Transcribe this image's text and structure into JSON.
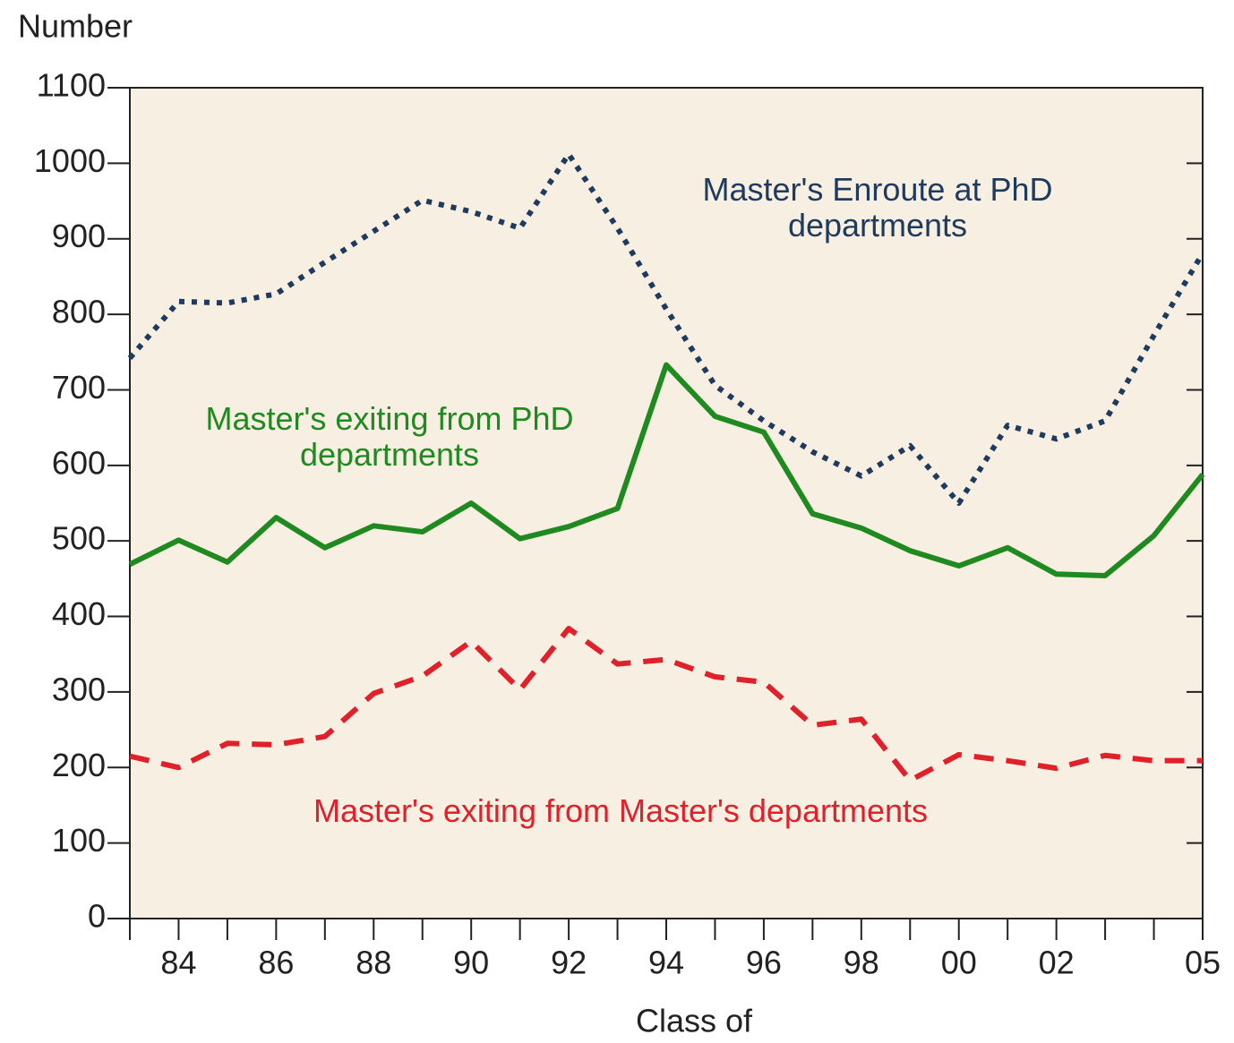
{
  "chart_data": {
    "type": "line",
    "ylabel": "Number",
    "xlabel": "Class of",
    "categories": [
      null,
      "84",
      null,
      "86",
      null,
      "88",
      null,
      "90",
      null,
      "92",
      null,
      "94",
      null,
      "96",
      null,
      "98",
      null,
      "00",
      null,
      "02",
      null,
      null,
      "05"
    ],
    "series": [
      {
        "name": "Master's Enroute at PhD departments",
        "color": "#1f3a5f",
        "style": "dotted",
        "values": [
          742,
          817,
          815,
          827,
          869,
          910,
          951,
          936,
          914,
          1012,
          914,
          807,
          706,
          659,
          618,
          586,
          626,
          550,
          653,
          635,
          659,
          772,
          881
        ]
      },
      {
        "name": "Master's exiting from PhD departments",
        "color": "#1f8a1f",
        "style": "solid",
        "values": [
          469,
          501,
          472,
          531,
          491,
          520,
          512,
          550,
          503,
          519,
          543,
          733,
          665,
          644,
          536,
          517,
          487,
          467,
          491,
          456,
          454,
          507,
          588
        ]
      },
      {
        "name": "Master's exiting from Master's departments",
        "color": "#e0202a",
        "style": "dashed",
        "values": [
          215,
          200,
          232,
          230,
          241,
          298,
          321,
          367,
          303,
          384,
          337,
          343,
          320,
          313,
          256,
          264,
          183,
          217,
          209,
          199,
          216,
          209,
          209
        ]
      }
    ],
    "ylim": [
      0,
      1100
    ],
    "yticks": [
      0,
      100,
      200,
      300,
      400,
      500,
      600,
      700,
      800,
      900,
      1000,
      1100
    ],
    "grid": false
  }
}
